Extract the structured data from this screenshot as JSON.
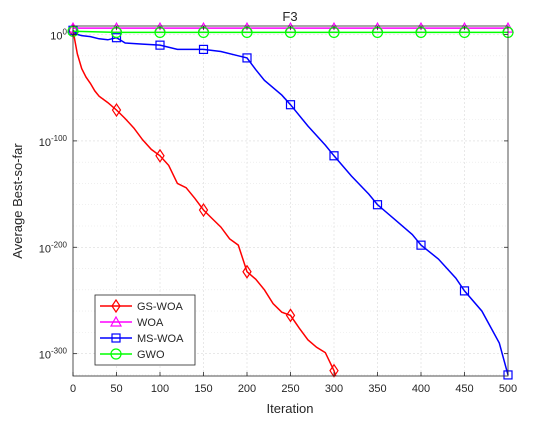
{
  "chart_data": {
    "type": "line",
    "title": "F3",
    "xlabel": "Iteration",
    "ylabel": "Average Best-so-far",
    "xlim": [
      0,
      500
    ],
    "ylim_exponent": [
      -321,
      8
    ],
    "y_scale": "log",
    "grid": true,
    "grid_minor": true,
    "legend_position": "bottom-left",
    "x_ticks": [
      "0",
      "50",
      "100",
      "150",
      "200",
      "250",
      "300",
      "350",
      "400",
      "450",
      "500"
    ],
    "y_ticks": [
      {
        "base": "10",
        "exp": "0",
        "value_exp": 0
      },
      {
        "base": "10",
        "exp": "-100",
        "value_exp": -100
      },
      {
        "base": "10",
        "exp": "-200",
        "value_exp": -200
      },
      {
        "base": "10",
        "exp": "-300",
        "value_exp": -300
      }
    ],
    "series": [
      {
        "name": "GS-WOA",
        "color": "#ff0000",
        "marker": "diamond",
        "x": [
          0,
          5,
          10,
          15,
          20,
          25,
          30,
          40,
          50,
          60,
          70,
          80,
          90,
          100,
          110,
          120,
          130,
          140,
          150,
          160,
          170,
          180,
          190,
          200,
          210,
          220,
          230,
          240,
          250,
          260,
          270,
          280,
          290,
          300,
          302
        ],
        "log10_y": [
          4,
          -18,
          -32,
          -40,
          -46,
          -53,
          -58,
          -64,
          -71,
          -79,
          -88,
          -99,
          -108,
          -114,
          -123,
          -140,
          -144,
          -154,
          -165,
          -173,
          -181,
          -192,
          -198,
          -223,
          -230,
          -240,
          -253,
          -261,
          -264,
          -276,
          -287,
          -294,
          -299,
          -316,
          -321
        ]
      },
      {
        "name": "WOA",
        "color": "#ff00ff",
        "marker": "triangle",
        "x": [
          0,
          50,
          100,
          150,
          200,
          250,
          300,
          350,
          400,
          450,
          500
        ],
        "log10_y": [
          6,
          6,
          6,
          6,
          6,
          6,
          6,
          6,
          6,
          6,
          6
        ]
      },
      {
        "name": "MS-WOA",
        "color": "#0000ff",
        "marker": "square",
        "x": [
          0,
          5,
          10,
          20,
          30,
          40,
          50,
          60,
          80,
          100,
          120,
          150,
          170,
          190,
          200,
          210,
          220,
          240,
          250,
          270,
          290,
          300,
          320,
          340,
          350,
          370,
          390,
          400,
          420,
          440,
          450,
          470,
          490,
          500
        ],
        "log10_y": [
          4,
          0,
          -1,
          -2,
          -4,
          -5,
          -3,
          -8,
          -9,
          -10,
          -14,
          -14,
          -16,
          -20,
          -22,
          -33,
          -43,
          -57,
          -66,
          -86,
          -104,
          -114,
          -133,
          -150,
          -160,
          -174,
          -188,
          -198,
          -211,
          -229,
          -241,
          -260,
          -290,
          -320
        ]
      },
      {
        "name": "GWO",
        "color": "#00ff00",
        "marker": "circle",
        "x": [
          0,
          50,
          100,
          150,
          200,
          250,
          300,
          350,
          400,
          450,
          500
        ],
        "log10_y": [
          3,
          2,
          2,
          2,
          2,
          2,
          2,
          2,
          2,
          2,
          2
        ]
      }
    ],
    "marker_x": [
      0,
      50,
      100,
      150,
      200,
      250,
      300,
      350,
      400,
      450,
      500
    ]
  }
}
